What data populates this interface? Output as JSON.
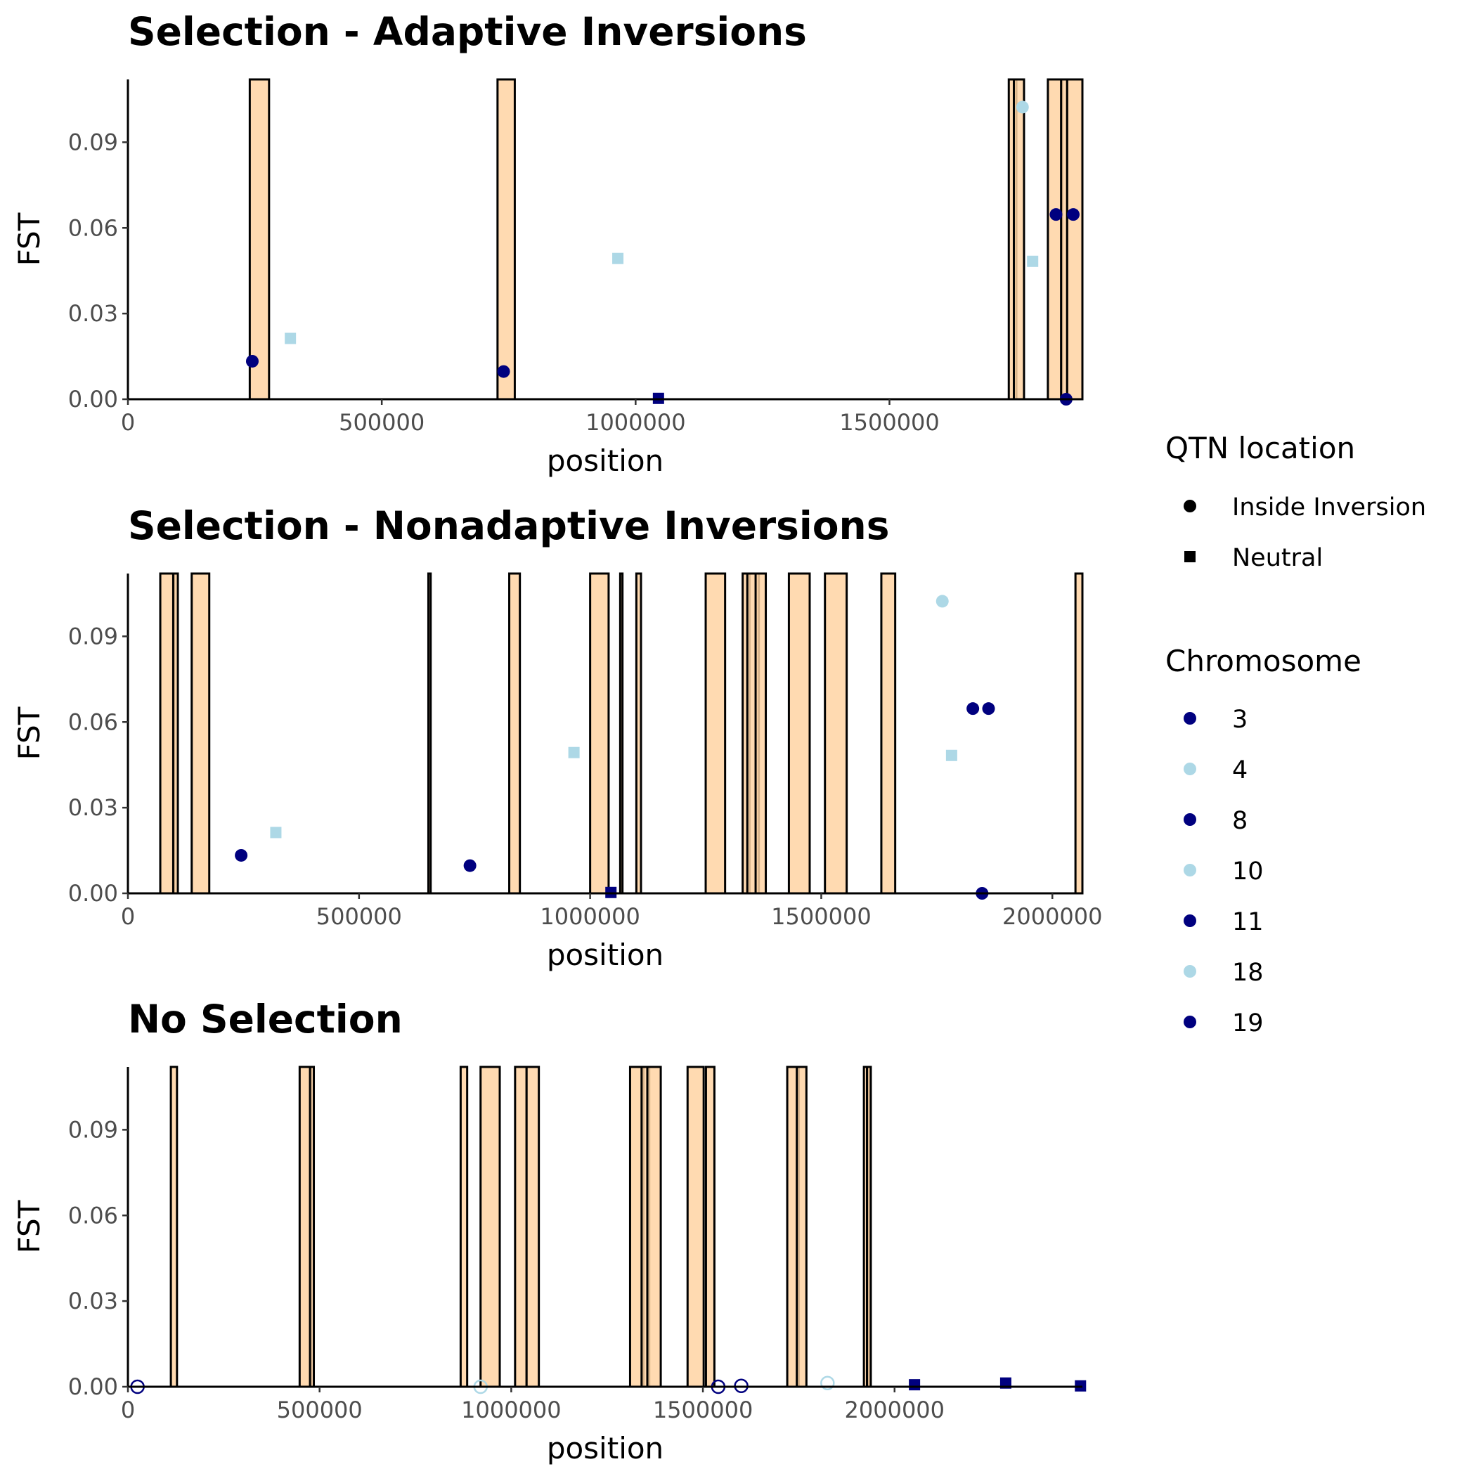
{
  "colors": {
    "inversion_fill": "#FFD3A3",
    "inversion_border": "#000000",
    "dark_point": "#00007F",
    "light_point": "#ADD8E6",
    "axis": "#000000",
    "tick_label": "#4D4D4D"
  },
  "legend": {
    "shape_title": "QTN location",
    "shape_items": [
      {
        "label": "Inside Inversion",
        "shape": "circle"
      },
      {
        "label": "Neutral",
        "shape": "square"
      }
    ],
    "color_title": "Chromosome",
    "color_items": [
      {
        "label": "3",
        "color": "#00007F"
      },
      {
        "label": "4",
        "color": "#ADD8E6"
      },
      {
        "label": "8",
        "color": "#00007F"
      },
      {
        "label": "10",
        "color": "#ADD8E6"
      },
      {
        "label": "11",
        "color": "#00007F"
      },
      {
        "label": "18",
        "color": "#ADD8E6"
      },
      {
        "label": "19",
        "color": "#00007F"
      }
    ]
  },
  "chart_data": [
    {
      "type": "scatter",
      "title": "Selection - Adaptive Inversions",
      "xlabel": "position",
      "ylabel": "FST",
      "xlim": [
        0,
        1880000
      ],
      "ylim": [
        0,
        0.112
      ],
      "xticks": [
        0,
        500000,
        1000000,
        1500000
      ],
      "xtick_labels": [
        "0",
        "500000",
        "1000000",
        "1500000"
      ],
      "yticks": [
        0,
        0.03,
        0.06,
        0.09
      ],
      "ytick_labels": [
        "0.00",
        "0.03",
        "0.06",
        "0.09"
      ],
      "grid": false,
      "inversions": [
        [
          240000,
          278000
        ],
        [
          728000,
          762000
        ],
        [
          1735000,
          1750000
        ],
        [
          1745000,
          1765000
        ],
        [
          1812000,
          1840000
        ],
        [
          1838000,
          1850000
        ],
        [
          1850000,
          1880000
        ]
      ],
      "points": [
        {
          "x": 245000,
          "y": 0.0133,
          "shape": "circle",
          "color": "dark",
          "filled": true
        },
        {
          "x": 320000,
          "y": 0.0213,
          "shape": "square",
          "color": "light",
          "filled": true
        },
        {
          "x": 740000,
          "y": 0.0097,
          "shape": "circle",
          "color": "dark",
          "filled": true
        },
        {
          "x": 965000,
          "y": 0.0493,
          "shape": "square",
          "color": "light",
          "filled": true
        },
        {
          "x": 1045000,
          "y": 0.0003,
          "shape": "square",
          "color": "dark",
          "filled": true
        },
        {
          "x": 1762000,
          "y": 0.1023,
          "shape": "circle",
          "color": "light",
          "filled": true
        },
        {
          "x": 1782000,
          "y": 0.0483,
          "shape": "square",
          "color": "light",
          "filled": true
        },
        {
          "x": 1828000,
          "y": 0.0647,
          "shape": "circle",
          "color": "dark",
          "filled": true
        },
        {
          "x": 1862000,
          "y": 0.0647,
          "shape": "circle",
          "color": "dark",
          "filled": true
        },
        {
          "x": 1848000,
          "y": 0.0,
          "shape": "circle",
          "color": "dark",
          "filled": true
        }
      ]
    },
    {
      "type": "scatter",
      "title": "Selection - Nonadaptive Inversions",
      "xlabel": "position",
      "ylabel": "FST",
      "xlim": [
        0,
        2065000
      ],
      "ylim": [
        0,
        0.112
      ],
      "xticks": [
        0,
        500000,
        1000000,
        1500000,
        2000000
      ],
      "xtick_labels": [
        "0",
        "500000",
        "1000000",
        "1500000",
        "2000000"
      ],
      "yticks": [
        0,
        0.03,
        0.06,
        0.09
      ],
      "ytick_labels": [
        "0.00",
        "0.03",
        "0.06",
        "0.09"
      ],
      "grid": false,
      "inversions": [
        [
          70000,
          100000
        ],
        [
          98000,
          108000
        ],
        [
          138000,
          176000
        ],
        [
          650000,
          655000
        ],
        [
          825000,
          848000
        ],
        [
          1000000,
          1040000
        ],
        [
          1065000,
          1070000
        ],
        [
          1100000,
          1110000
        ],
        [
          1250000,
          1292000
        ],
        [
          1330000,
          1345000
        ],
        [
          1340000,
          1365000
        ],
        [
          1358000,
          1380000
        ],
        [
          1430000,
          1475000
        ],
        [
          1508000,
          1555000
        ],
        [
          1630000,
          1660000
        ],
        [
          2050000,
          2065000
        ]
      ],
      "points": [
        {
          "x": 245000,
          "y": 0.0133,
          "shape": "circle",
          "color": "dark",
          "filled": true
        },
        {
          "x": 320000,
          "y": 0.0213,
          "shape": "square",
          "color": "light",
          "filled": true
        },
        {
          "x": 740000,
          "y": 0.0097,
          "shape": "circle",
          "color": "dark",
          "filled": true
        },
        {
          "x": 965000,
          "y": 0.0493,
          "shape": "square",
          "color": "light",
          "filled": true
        },
        {
          "x": 1045000,
          "y": 0.0003,
          "shape": "square",
          "color": "dark",
          "filled": true
        },
        {
          "x": 1762000,
          "y": 0.1023,
          "shape": "circle",
          "color": "light",
          "filled": true
        },
        {
          "x": 1782000,
          "y": 0.0483,
          "shape": "square",
          "color": "light",
          "filled": true
        },
        {
          "x": 1828000,
          "y": 0.0647,
          "shape": "circle",
          "color": "dark",
          "filled": true
        },
        {
          "x": 1862000,
          "y": 0.0647,
          "shape": "circle",
          "color": "dark",
          "filled": true
        },
        {
          "x": 1848000,
          "y": 0.0,
          "shape": "circle",
          "color": "dark",
          "filled": true
        }
      ]
    },
    {
      "type": "scatter",
      "title": "No Selection",
      "xlabel": "position",
      "ylabel": "FST",
      "xlim": [
        0,
        2490000
      ],
      "ylim": [
        0,
        0.112
      ],
      "xticks": [
        0,
        500000,
        1000000,
        1500000,
        2000000
      ],
      "xtick_labels": [
        "0",
        "500000",
        "1000000",
        "1500000",
        "2000000"
      ],
      "yticks": [
        0,
        0.03,
        0.06,
        0.09
      ],
      "ytick_labels": [
        "0.00",
        "0.03",
        "0.06",
        "0.09"
      ],
      "grid": false,
      "inversions": [
        [
          112000,
          128000
        ],
        [
          448000,
          478000
        ],
        [
          475000,
          485000
        ],
        [
          868000,
          885000
        ],
        [
          920000,
          970000
        ],
        [
          1010000,
          1040000
        ],
        [
          1040000,
          1072000
        ],
        [
          1310000,
          1345000
        ],
        [
          1340000,
          1360000
        ],
        [
          1355000,
          1390000
        ],
        [
          1460000,
          1502000
        ],
        [
          1508000,
          1530000
        ],
        [
          1720000,
          1750000
        ],
        [
          1745000,
          1770000
        ],
        [
          1920000,
          1932000
        ],
        [
          1928000,
          1938000
        ]
      ],
      "points": [
        {
          "x": 25000,
          "y": 0.0,
          "shape": "circle",
          "color": "dark",
          "filled": false
        },
        {
          "x": 920000,
          "y": 0.0,
          "shape": "circle",
          "color": "light",
          "filled": false
        },
        {
          "x": 1540000,
          "y": 0.0,
          "shape": "circle",
          "color": "dark",
          "filled": false
        },
        {
          "x": 1600000,
          "y": 0.0003,
          "shape": "circle",
          "color": "dark",
          "filled": false
        },
        {
          "x": 1825000,
          "y": 0.0013,
          "shape": "circle",
          "color": "light",
          "filled": false
        },
        {
          "x": 2052000,
          "y": 0.0007,
          "shape": "square",
          "color": "dark",
          "filled": true
        },
        {
          "x": 2290000,
          "y": 0.0013,
          "shape": "square",
          "color": "dark",
          "filled": true
        },
        {
          "x": 2485000,
          "y": 0.0003,
          "shape": "square",
          "color": "dark",
          "filled": true
        }
      ]
    }
  ]
}
